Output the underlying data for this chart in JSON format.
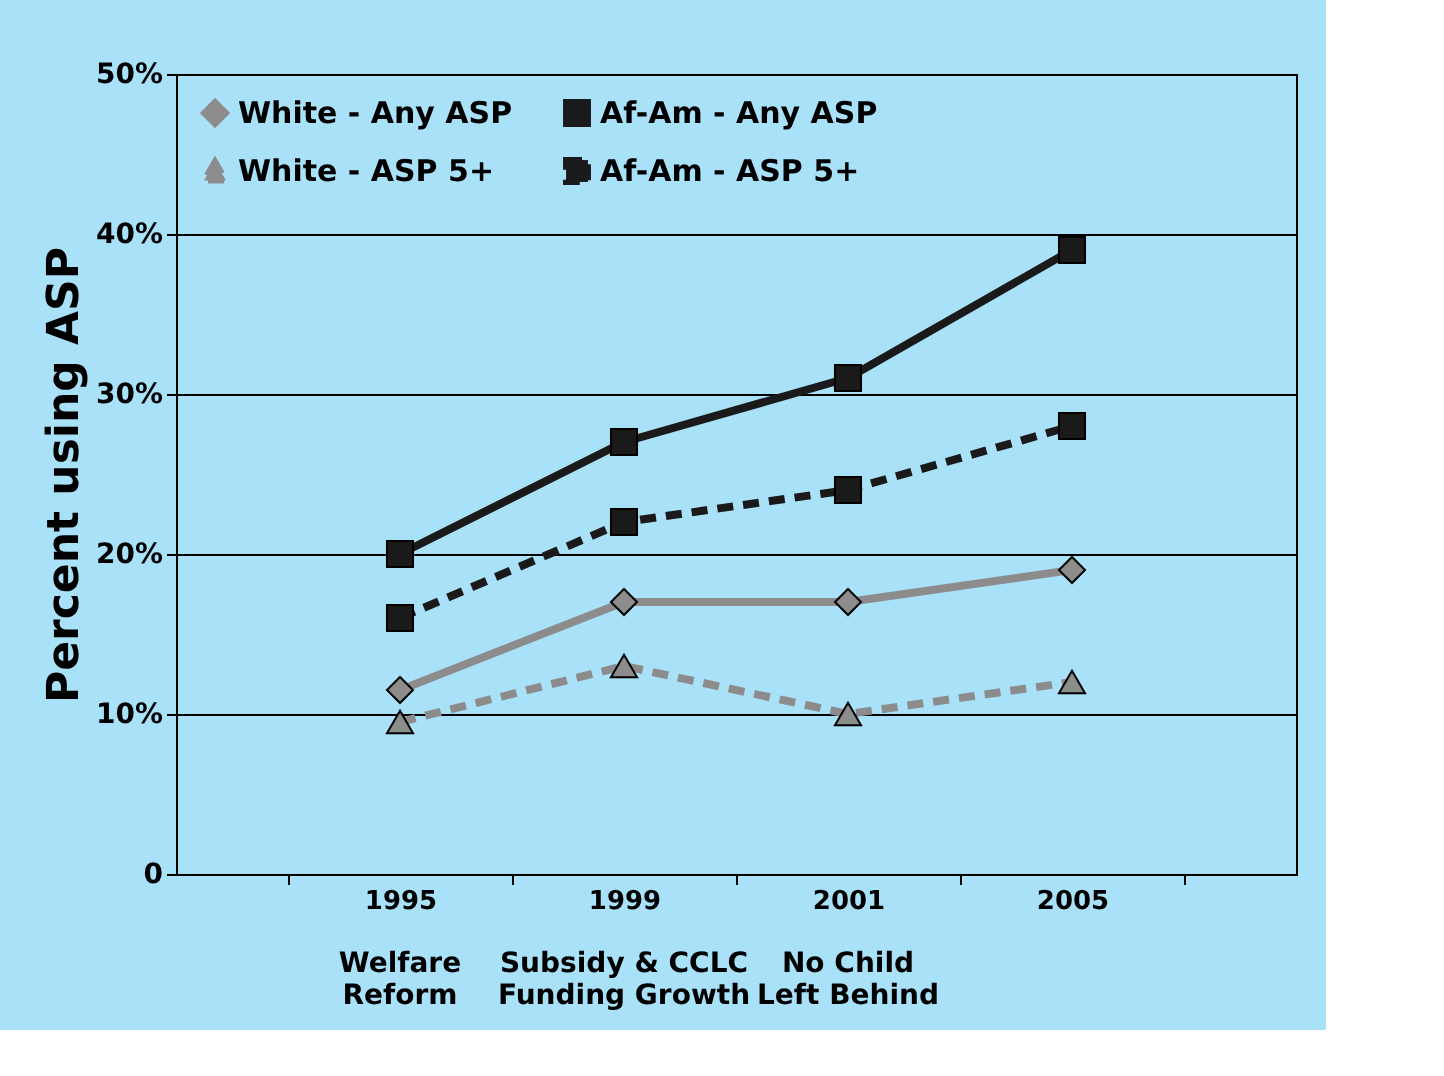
{
  "chart_data": {
    "type": "line",
    "ylabel": "Percent using ASP",
    "categories": [
      "1995",
      "1999",
      "2001",
      "2005"
    ],
    "series": [
      {
        "name": "White - Any ASP",
        "color": "#8c8c8c",
        "values": [
          11.5,
          17,
          17,
          19
        ],
        "marker": "diamond",
        "line_style": "solid"
      },
      {
        "name": "White - ASP 5+",
        "color": "#8c8c8c",
        "values": [
          9.5,
          13,
          10,
          12
        ],
        "marker": "triangle",
        "line_style": "dashed"
      },
      {
        "name": "Af-Am - Any ASP",
        "color": "#1a1a1a",
        "values": [
          20,
          27,
          31,
          39
        ],
        "marker": "square",
        "line_style": "solid"
      },
      {
        "name": "Af-Am - ASP 5+",
        "color": "#1a1a1a",
        "values": [
          16,
          22,
          24,
          28
        ],
        "marker": "square",
        "line_style": "dashed"
      }
    ],
    "ylim": [
      0,
      50
    ],
    "yticks": [
      0,
      {
        "value": 10,
        "label": "10%"
      },
      {
        "value": 20,
        "label": "20%"
      },
      {
        "value": 30,
        "label": "30%"
      },
      {
        "value": 40,
        "label": "40%"
      },
      {
        "value": 50,
        "label": "50%"
      }
    ],
    "grid": "y",
    "legend": "top left",
    "annotations": [
      "Welfare\nReform",
      "Subsidy & CCLC\nFunding Growth",
      "No Child\nLeft Behind"
    ]
  }
}
